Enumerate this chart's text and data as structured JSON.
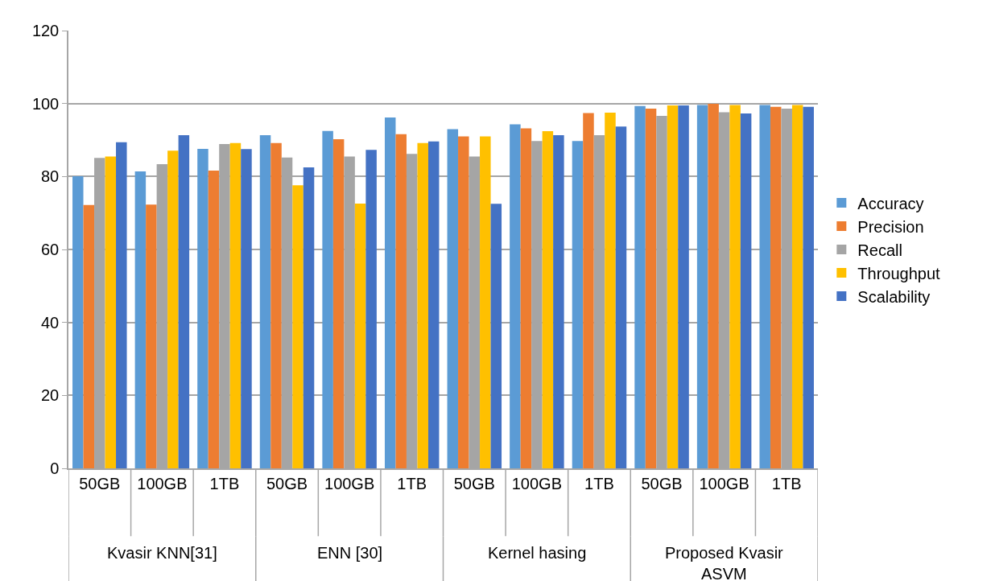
{
  "chart_data": {
    "type": "bar",
    "categories": [
      "50GB",
      "100GB",
      "1TB",
      "50GB",
      "100GB",
      "1TB",
      "50GB",
      "100GB",
      "1TB",
      "50GB",
      "100GB",
      "1TB"
    ],
    "annotations": [
      "Kvasir KNN[31]",
      "ENN [30]",
      "Kernel hasing",
      "Proposed Kvasir ASVM"
    ],
    "series": [
      {
        "name": "Accuracy",
        "color": "#5b9bd5",
        "values": [
          80.1,
          81.4,
          87.6,
          91.3,
          92.5,
          96.2,
          93.0,
          94.3,
          89.7,
          99.3,
          99.6,
          99.6
        ]
      },
      {
        "name": "Precision",
        "color": "#ed7d31",
        "values": [
          72.2,
          72.3,
          81.6,
          89.2,
          90.2,
          91.6,
          91.0,
          93.2,
          97.4,
          98.6,
          99.9,
          99.1
        ]
      },
      {
        "name": "Recall",
        "color": "#a5a5a5",
        "values": [
          85.1,
          83.4,
          88.9,
          85.2,
          85.5,
          86.2,
          85.5,
          89.7,
          91.3,
          96.6,
          97.6,
          98.6
        ]
      },
      {
        "name": "Throughput",
        "color": "#ffc000",
        "values": [
          85.5,
          87.1,
          89.2,
          77.6,
          72.6,
          89.2,
          91.0,
          92.4,
          97.5,
          99.5,
          99.6,
          99.6
        ]
      },
      {
        "name": "Scalability",
        "color": "#4472c4",
        "values": [
          89.4,
          91.3,
          87.5,
          82.5,
          87.3,
          89.6,
          72.5,
          91.3,
          93.7,
          99.5,
          97.3,
          99.1
        ]
      }
    ],
    "ylim": [
      0,
      120
    ],
    "yticks": [
      0,
      20,
      40,
      60,
      80,
      100,
      120
    ],
    "grid": "y",
    "legend": "right"
  }
}
